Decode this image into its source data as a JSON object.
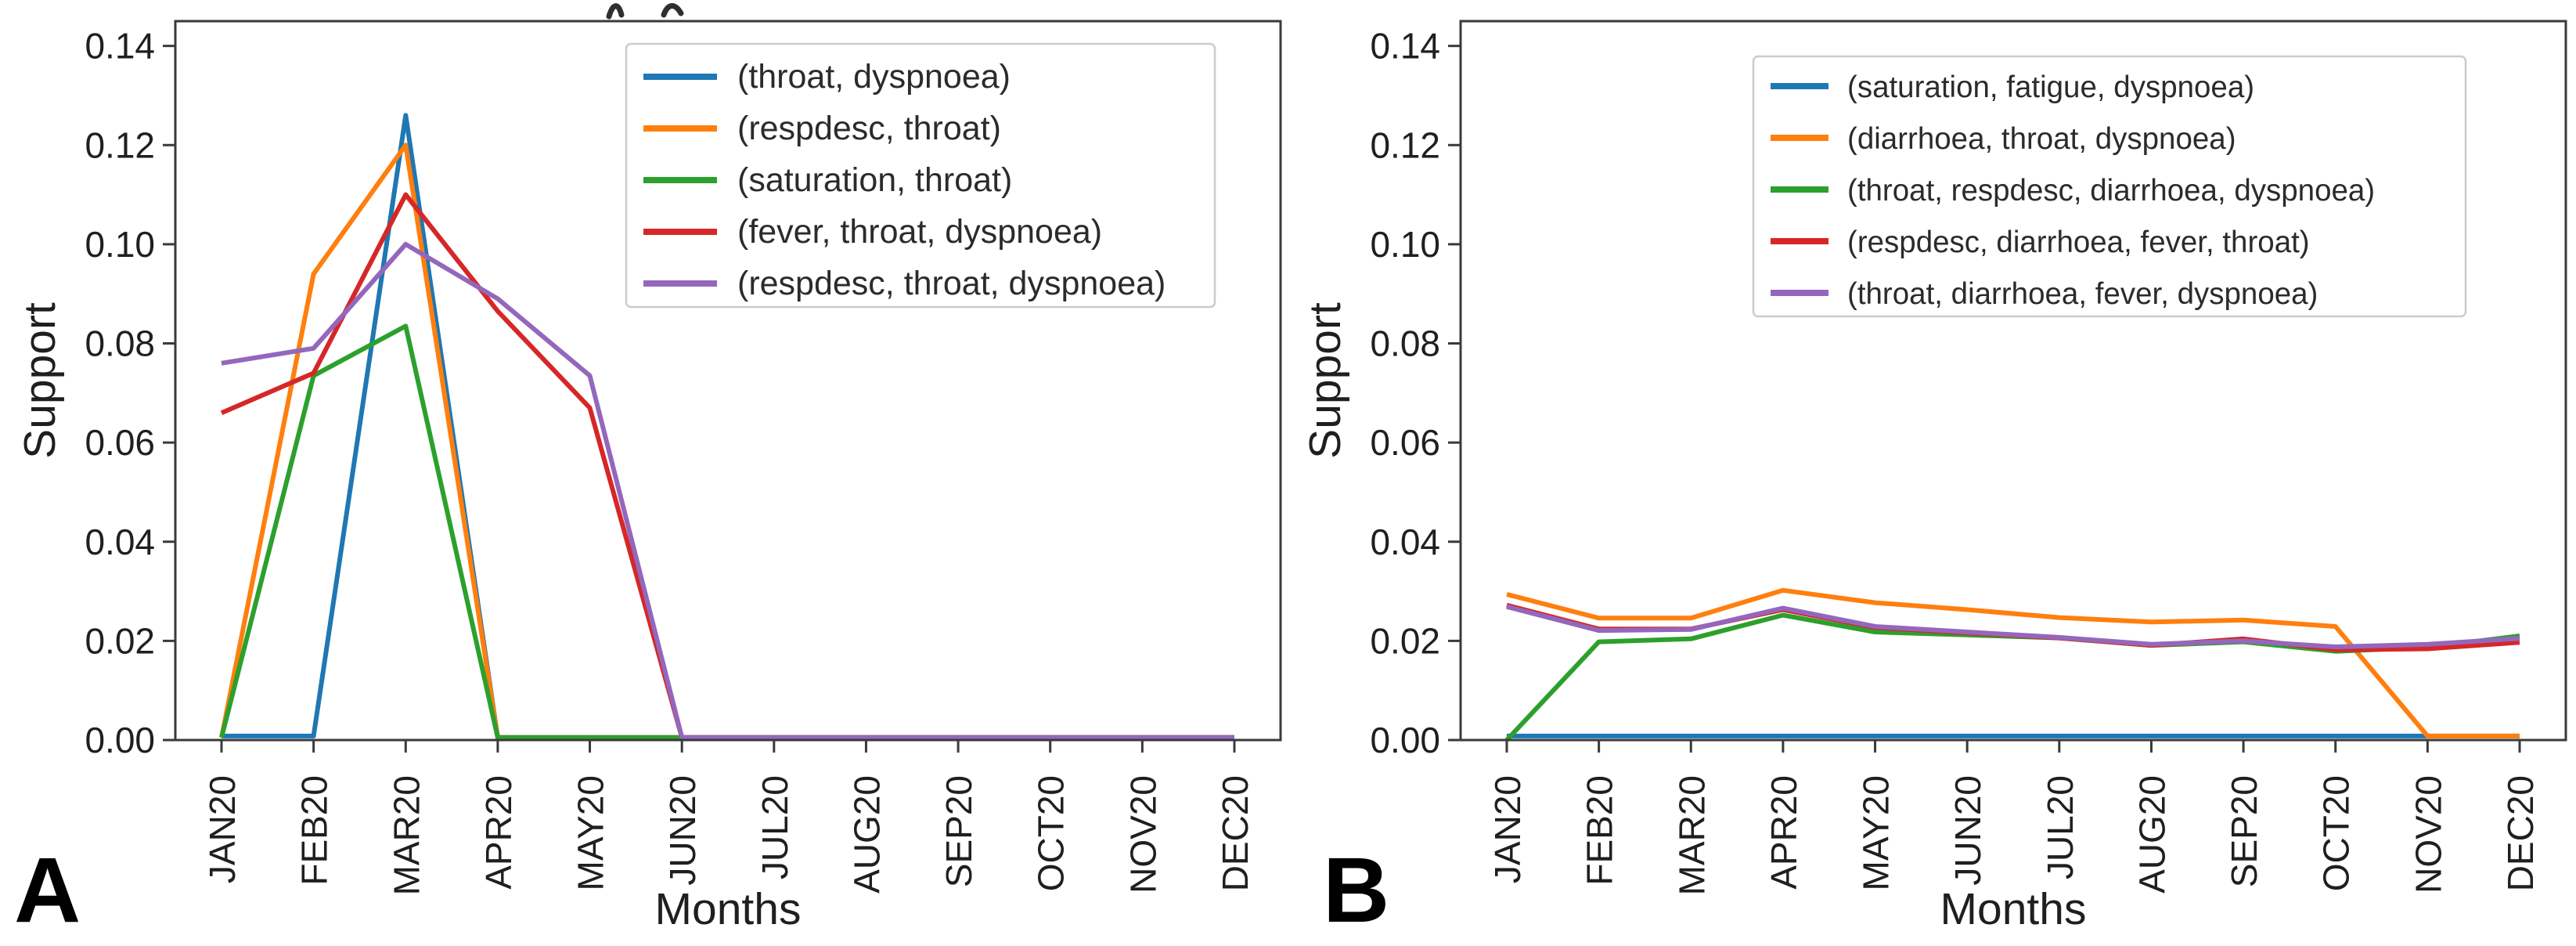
{
  "figure": {
    "background": "#ffffff",
    "axis_color": "#3a3a3a",
    "text_color": "#1f1f1f",
    "legend_border_color": "#cccccc"
  },
  "chart_data": [
    {
      "type": "line",
      "panel_label": "A",
      "xlabel": "Months",
      "ylabel": "Support",
      "x": [
        "JAN20",
        "FEB20",
        "MAR20",
        "APR20",
        "MAY20",
        "JUN20",
        "JUL20",
        "AUG20",
        "SEP20",
        "OCT20",
        "NOV20",
        "DEC20"
      ],
      "ytick_labels": [
        "0.00",
        "0.02",
        "0.04",
        "0.06",
        "0.08",
        "0.10",
        "0.12",
        "0.14"
      ],
      "ylim": [
        0,
        0.145
      ],
      "grid": false,
      "legend_position": "upper right",
      "series": [
        {
          "name": "(throat, dyspnoea)",
          "color": "#1f77b4",
          "values": [
            0.0008,
            0.0008,
            0.126,
            0.0005,
            0.0005,
            0.0005,
            0.0005,
            0.0005,
            0.0005,
            0.0005,
            0.0005,
            0.0005
          ]
        },
        {
          "name": "(respdesc, throat)",
          "color": "#ff7f0e",
          "values": [
            0.0005,
            0.094,
            0.12,
            0.0005,
            0.0005,
            0.0005,
            0.0005,
            0.0005,
            0.0005,
            0.0005,
            0.0005,
            0.0005
          ]
        },
        {
          "name": "(saturation, throat)",
          "color": "#2ca02c",
          "values": [
            0.0005,
            0.0735,
            0.0835,
            0.0005,
            0.0005,
            0.0005,
            0.0005,
            0.0005,
            0.0005,
            0.0005,
            0.0005,
            0.0005
          ]
        },
        {
          "name": "(fever, throat, dyspnoea)",
          "color": "#d62728",
          "values": [
            0.066,
            0.074,
            0.11,
            0.0865,
            0.067,
            0.0005,
            0.0005,
            0.0005,
            0.0005,
            0.0005,
            0.0005,
            0.0005
          ]
        },
        {
          "name": "(respdesc, throat, dyspnoea)",
          "color": "#9467bd",
          "values": [
            0.076,
            0.079,
            0.1,
            0.089,
            0.0735,
            0.0005,
            0.0005,
            0.0005,
            0.0005,
            0.0005,
            0.0005,
            0.0005
          ]
        }
      ]
    },
    {
      "type": "line",
      "panel_label": "B",
      "xlabel": "Months",
      "ylabel": "Support",
      "x": [
        "JAN20",
        "FEB20",
        "MAR20",
        "APR20",
        "MAY20",
        "JUN20",
        "JUL20",
        "AUG20",
        "SEP20",
        "OCT20",
        "NOV20",
        "DEC20"
      ],
      "ytick_labels": [
        "0.00",
        "0.02",
        "0.04",
        "0.06",
        "0.08",
        "0.10",
        "0.12",
        "0.14"
      ],
      "ylim": [
        0,
        0.145
      ],
      "grid": false,
      "legend_position": "upper right",
      "series": [
        {
          "name": "(saturation, fatigue, dyspnoea)",
          "color": "#1f77b4",
          "values": [
            0.0008,
            0.0008,
            0.0008,
            0.0008,
            0.0008,
            0.0008,
            0.0008,
            0.0008,
            0.0008,
            0.0008,
            0.0008,
            0.0008
          ]
        },
        {
          "name": "(diarrhoea, throat, dyspnoea)",
          "color": "#ff7f0e",
          "values": [
            0.0294,
            0.0246,
            0.0246,
            0.0302,
            0.0277,
            0.0263,
            0.0247,
            0.0238,
            0.0242,
            0.0229,
            0.0008,
            0.0008
          ]
        },
        {
          "name": "(throat, respdesc, diarrhoea, dyspnoea)",
          "color": "#2ca02c",
          "values": [
            0.0,
            0.0198,
            0.0204,
            0.0252,
            0.0218,
            0.0212,
            0.0206,
            0.0191,
            0.0198,
            0.0179,
            0.0187,
            0.021
          ]
        },
        {
          "name": "(respdesc, diarrhoea, fever, throat)",
          "color": "#d62728",
          "values": [
            0.0272,
            0.0224,
            0.0224,
            0.0263,
            0.0227,
            0.0216,
            0.0206,
            0.0191,
            0.0204,
            0.0182,
            0.0184,
            0.0197
          ]
        },
        {
          "name": "(throat, diarrhoea, fever, dyspnoea)",
          "color": "#9467bd",
          "values": [
            0.0269,
            0.0221,
            0.0223,
            0.0266,
            0.0229,
            0.0218,
            0.0207,
            0.0193,
            0.02,
            0.0188,
            0.0193,
            0.0205
          ]
        }
      ]
    }
  ]
}
